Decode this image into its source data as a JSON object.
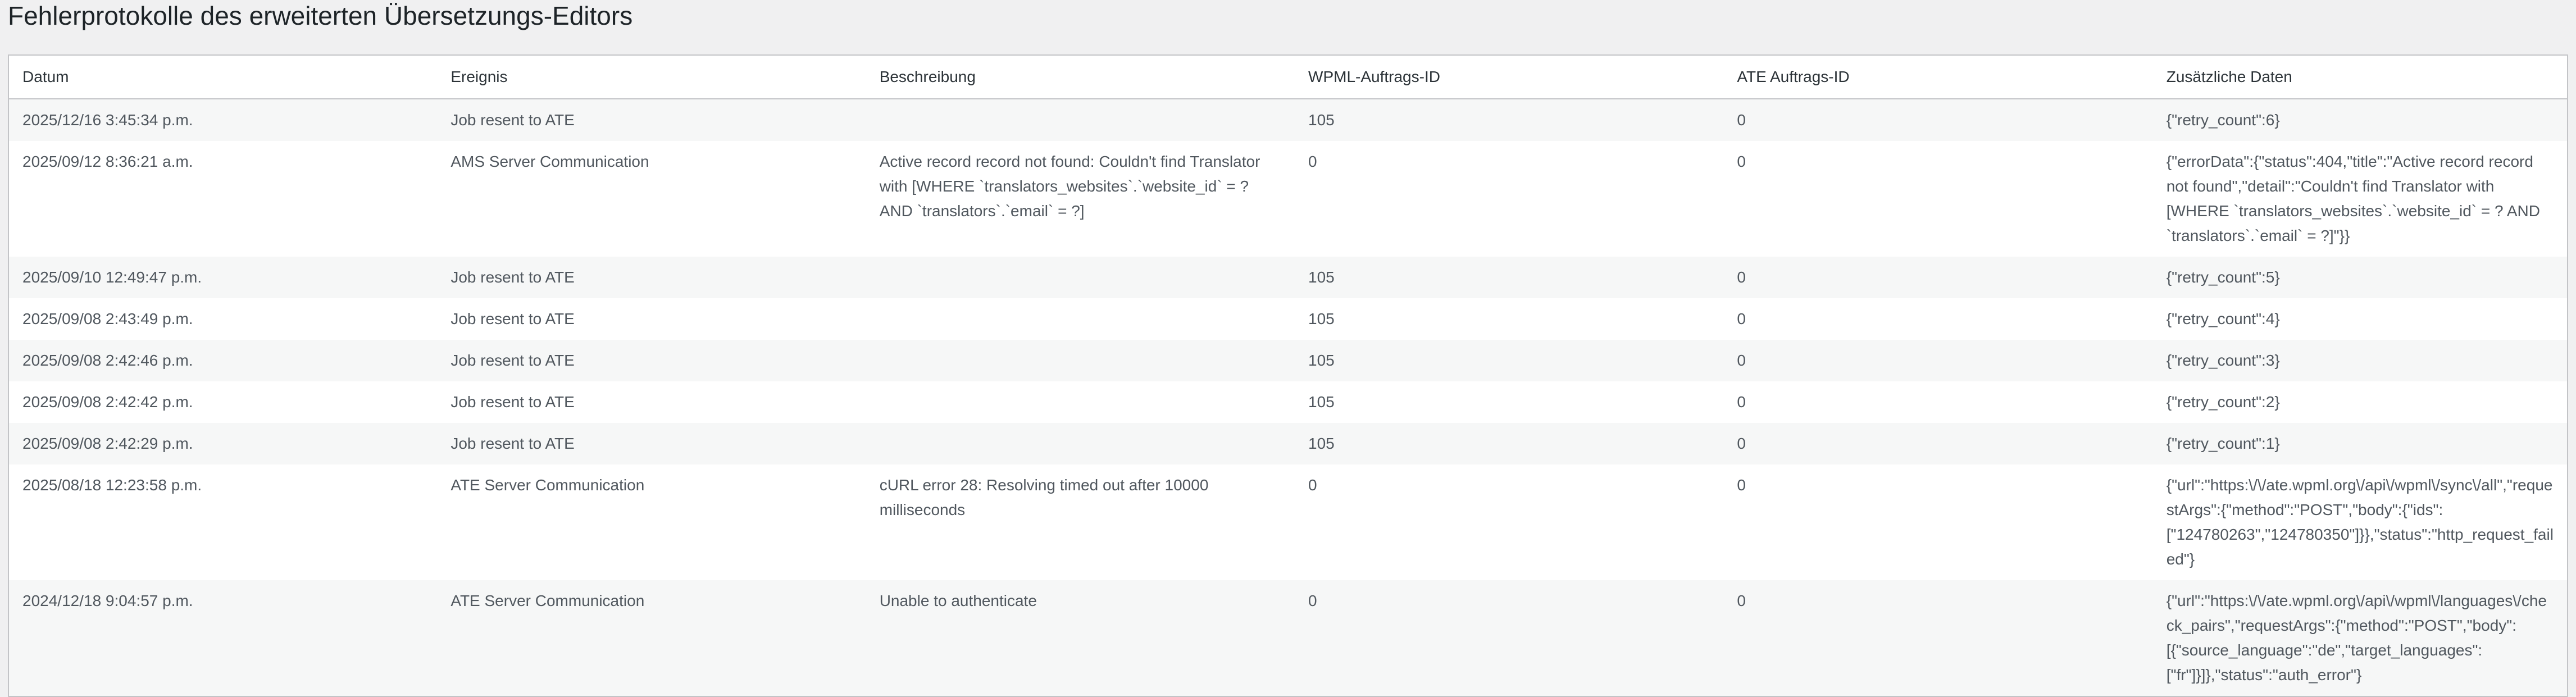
{
  "title": "Fehlerprotokolle des erweiterten Übersetzungs-Editors",
  "columns": [
    "Datum",
    "Ereignis",
    "Beschreibung",
    "WPML-Auftrags-ID",
    "ATE Auftrags-ID",
    "Zusätzliche Daten"
  ],
  "rows": [
    [
      "2025/12/16 3:45:34 p.m.",
      "Job resent to ATE",
      "",
      "105",
      "0",
      "{\"retry_count\":6}"
    ],
    [
      "2025/09/12 8:36:21 a.m.",
      "AMS Server Communication",
      "Active record record not found: Couldn't find Translator with [WHERE `translators_websites`.`website_id` = ? AND `translators`.`email` = ?]",
      "0",
      "0",
      "{\"errorData\":{\"status\":404,\"title\":\"Active record record not found\",\"detail\":\"Couldn't find Translator with [WHERE `translators_websites`.`website_id` = ? AND `translators`.`email` = ?]\"}}"
    ],
    [
      "2025/09/10 12:49:47 p.m.",
      "Job resent to ATE",
      "",
      "105",
      "0",
      "{\"retry_count\":5}"
    ],
    [
      "2025/09/08 2:43:49 p.m.",
      "Job resent to ATE",
      "",
      "105",
      "0",
      "{\"retry_count\":4}"
    ],
    [
      "2025/09/08 2:42:46 p.m.",
      "Job resent to ATE",
      "",
      "105",
      "0",
      "{\"retry_count\":3}"
    ],
    [
      "2025/09/08 2:42:42 p.m.",
      "Job resent to ATE",
      "",
      "105",
      "0",
      "{\"retry_count\":2}"
    ],
    [
      "2025/09/08 2:42:29 p.m.",
      "Job resent to ATE",
      "",
      "105",
      "0",
      "{\"retry_count\":1}"
    ],
    [
      "2025/08/18 12:23:58 p.m.",
      "ATE Server Communication",
      "cURL error 28: Resolving timed out after 10000 milliseconds",
      "0",
      "0",
      "{\"url\":\"https:\\/\\/ate.wpml.org\\/api\\/wpml\\/sync\\/all\",\"requestArgs\":{\"method\":\"POST\",\"body\":{\"ids\":[\"124780263\",\"124780350\"]}},\"status\":\"http_request_failed\"}"
    ],
    [
      "2024/12/18 9:04:57 p.m.",
      "ATE Server Communication",
      "Unable to authenticate",
      "0",
      "0",
      "{\"url\":\"https:\\/\\/ate.wpml.org\\/api\\/wpml\\/languages\\/check_pairs\",\"requestArgs\":{\"method\":\"POST\",\"body\":[{\"source_language\":\"de\",\"target_languages\":[\"fr\"]}]},\"status\":\"auth_error\"}"
    ]
  ]
}
